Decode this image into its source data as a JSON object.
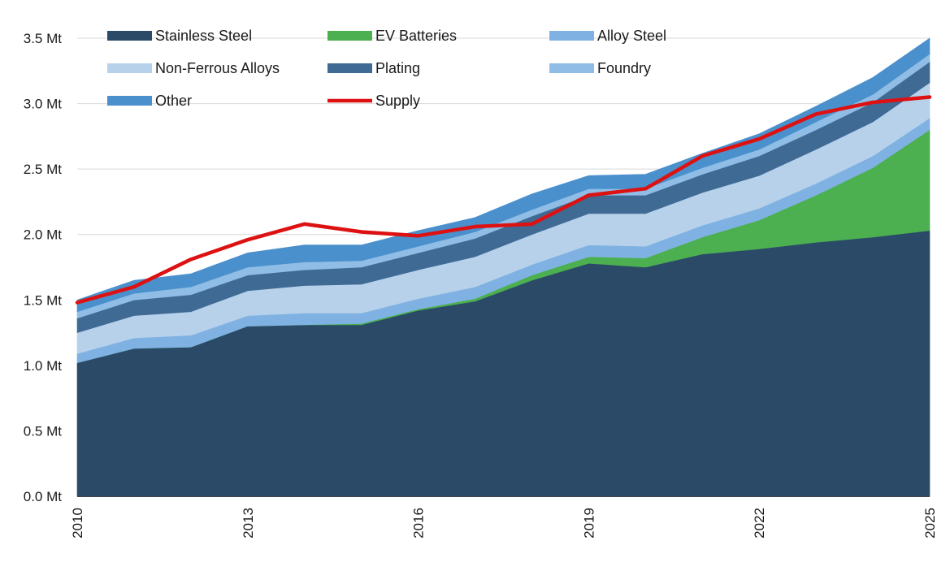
{
  "chart_data": {
    "type": "area",
    "stacked": true,
    "title": "",
    "xlabel": "",
    "ylabel": "",
    "unit": "Mt",
    "x": [
      2010,
      2011,
      2012,
      2013,
      2014,
      2015,
      2016,
      2017,
      2018,
      2019,
      2020,
      2021,
      2022,
      2023,
      2024,
      2025
    ],
    "xticks": [
      "2010",
      "2013",
      "2016",
      "2019",
      "2022",
      "2025"
    ],
    "yticks": [
      "0.0 Mt",
      "0.5 Mt",
      "1.0 Mt",
      "1.5 Mt",
      "2.0 Mt",
      "2.5 Mt",
      "3.0 Mt",
      "3.5 Mt"
    ],
    "ylim": [
      0,
      3.5
    ],
    "grid": "horizontal",
    "legend_position": "top-left",
    "series": [
      {
        "name": "Stainless Steel",
        "color": "#2a4a68",
        "values": [
          1.02,
          1.13,
          1.14,
          1.3,
          1.31,
          1.31,
          1.42,
          1.49,
          1.65,
          1.78,
          1.75,
          1.85,
          1.89,
          1.94,
          1.98,
          2.03
        ]
      },
      {
        "name": "EV Batteries",
        "color": "#4caf50",
        "values": [
          0.0,
          0.0,
          0.0,
          0.0,
          0.0,
          0.01,
          0.01,
          0.02,
          0.04,
          0.05,
          0.07,
          0.13,
          0.22,
          0.36,
          0.53,
          0.77
        ]
      },
      {
        "name": "Alloy Steel",
        "color": "#7fb2e2",
        "values": [
          0.07,
          0.08,
          0.09,
          0.08,
          0.09,
          0.08,
          0.08,
          0.09,
          0.08,
          0.09,
          0.09,
          0.09,
          0.09,
          0.09,
          0.09,
          0.09
        ]
      },
      {
        "name": "Non-Ferrous Alloys",
        "color": "#b7d1ea",
        "values": [
          0.16,
          0.17,
          0.18,
          0.19,
          0.21,
          0.22,
          0.22,
          0.23,
          0.23,
          0.24,
          0.25,
          0.25,
          0.25,
          0.26,
          0.26,
          0.27
        ]
      },
      {
        "name": "Plating",
        "color": "#3f6a94",
        "values": [
          0.11,
          0.12,
          0.13,
          0.12,
          0.12,
          0.13,
          0.13,
          0.14,
          0.14,
          0.14,
          0.14,
          0.14,
          0.15,
          0.15,
          0.15,
          0.16
        ]
      },
      {
        "name": "Foundry",
        "color": "#8fbde6",
        "values": [
          0.05,
          0.05,
          0.06,
          0.06,
          0.06,
          0.05,
          0.05,
          0.05,
          0.05,
          0.05,
          0.05,
          0.05,
          0.05,
          0.06,
          0.06,
          0.06
        ]
      },
      {
        "name": "Other",
        "color": "#4a90cc",
        "values": [
          0.09,
          0.1,
          0.1,
          0.11,
          0.13,
          0.12,
          0.12,
          0.11,
          0.12,
          0.1,
          0.11,
          0.11,
          0.12,
          0.12,
          0.13,
          0.12
        ]
      }
    ],
    "line_series": [
      {
        "name": "Supply",
        "color": "#dd1111",
        "values": [
          1.48,
          1.6,
          1.81,
          1.96,
          2.08,
          2.02,
          1.99,
          2.06,
          2.08,
          2.3,
          2.35,
          2.6,
          2.73,
          2.92,
          3.01,
          3.05
        ]
      }
    ]
  }
}
